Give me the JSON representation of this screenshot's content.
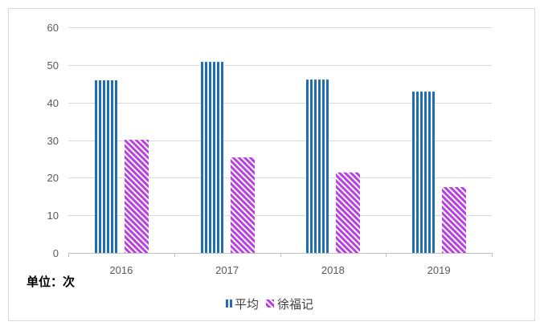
{
  "chart_data": {
    "type": "bar",
    "categories": [
      "2016",
      "2017",
      "2018",
      "2019"
    ],
    "series": [
      {
        "name": "平均",
        "values": [
          45.9,
          50.8,
          46.1,
          42.9
        ],
        "color": "#1F6EB5"
      },
      {
        "name": "徐福记",
        "values": [
          30.1,
          25.4,
          21.4,
          17.5
        ],
        "color": "#B93FE1"
      }
    ],
    "ylim": [
      0,
      60
    ],
    "yticks": [
      0,
      10,
      20,
      30,
      40,
      50,
      60
    ],
    "grid": true,
    "legend": "bottom",
    "unit_note": "单位：次"
  }
}
